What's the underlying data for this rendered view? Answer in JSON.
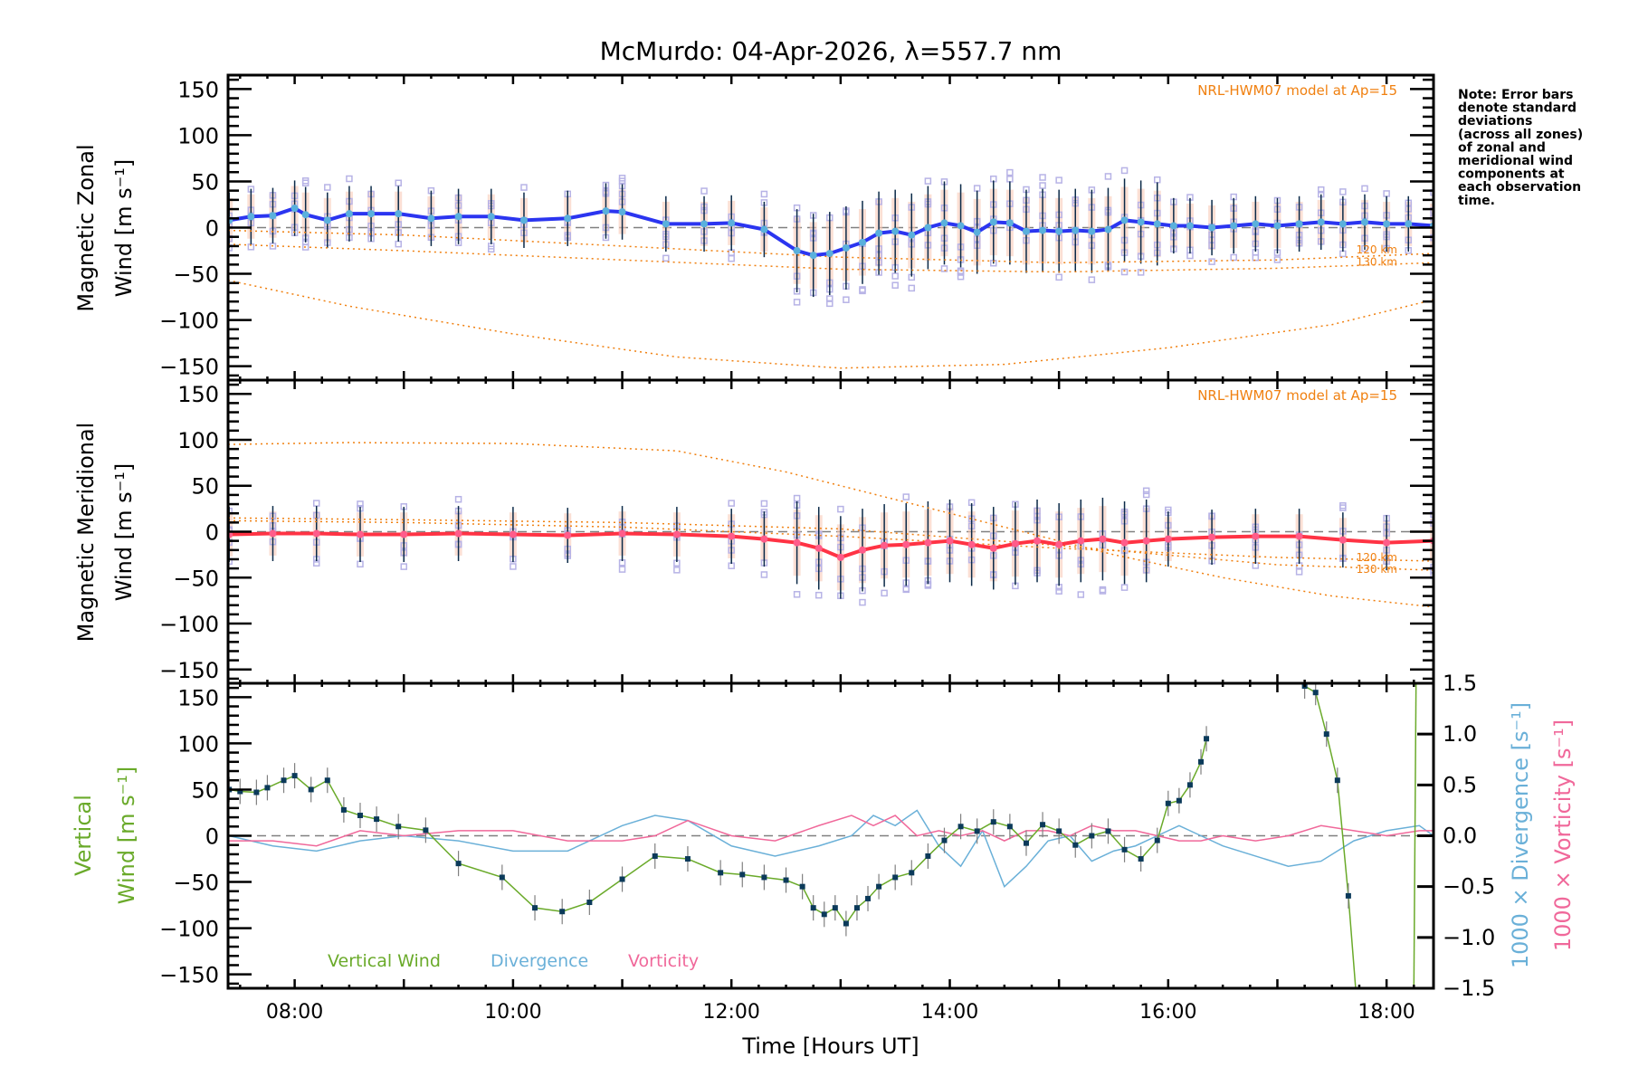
{
  "colors": {
    "frame": "#000000",
    "zonal_line": "#2b35f0",
    "zonal_points": "#5ab0dc",
    "meridional_line": "#ff3344",
    "meridional_points": "#ff5c8a",
    "model": "#f08010",
    "scatter": "#b7b3e6",
    "errorbar_dark": "#0b2a48",
    "zero_line": "#808080",
    "vertical_wind": "#6aaa2a",
    "vertical_points": "#0b3a5a",
    "vertical_err": "#808080",
    "divergence": "#6ab0d8",
    "vorticity": "#f0689a"
  },
  "chart_data": [
    {
      "id": "zonal",
      "type": "line",
      "title": "McMurdo: 04-Apr-2026, λ=557.7 nm",
      "xlabel": "Time [Hours UT]",
      "ylabel_line1": "Magnetic Zonal",
      "ylabel_line2": "Wind [m s⁻¹]",
      "ylim": [
        -165,
        165
      ],
      "xlim_hours": [
        7.39,
        18.43
      ],
      "yticks": [
        -150,
        -100,
        -50,
        0,
        50,
        100,
        150
      ],
      "ytick_labels": [
        "−150",
        "−100",
        "−50",
        "0",
        "50",
        "100",
        "150"
      ],
      "model_label": "NRL-HWM07 model at Ap=15",
      "km_labels": [
        "120 km",
        "130 km"
      ],
      "series": [
        {
          "name": "Zonal wind (mean)",
          "x": [
            7.4,
            7.6,
            7.8,
            8.0,
            8.1,
            8.3,
            8.5,
            8.7,
            8.95,
            9.25,
            9.5,
            9.8,
            10.1,
            10.5,
            10.85,
            11.0,
            11.4,
            11.75,
            12.0,
            12.3,
            12.6,
            12.75,
            12.9,
            13.05,
            13.2,
            13.35,
            13.5,
            13.65,
            13.8,
            13.95,
            14.1,
            14.25,
            14.4,
            14.55,
            14.7,
            14.85,
            15.0,
            15.15,
            15.3,
            15.45,
            15.6,
            15.75,
            15.9,
            16.05,
            16.2,
            16.4,
            16.6,
            16.8,
            17.0,
            17.2,
            17.4,
            17.6,
            17.8,
            18.0,
            18.2,
            18.43
          ],
          "values": [
            8,
            12,
            13,
            21,
            14,
            8,
            15,
            15,
            15,
            10,
            12,
            12,
            8,
            10,
            18,
            17,
            4,
            4,
            5,
            -2,
            -25,
            -30,
            -28,
            -22,
            -16,
            -6,
            -4,
            -8,
            0,
            5,
            2,
            -5,
            6,
            5,
            -4,
            -3,
            -4,
            -3,
            -4,
            -2,
            8,
            6,
            4,
            2,
            2,
            0,
            2,
            4,
            2,
            4,
            6,
            4,
            6,
            4,
            4,
            2
          ]
        },
        {
          "name": "HWM07 model 120 km",
          "x": [
            7.39,
            9,
            11,
            13,
            15,
            17,
            18.43
          ],
          "values": [
            -3,
            -8,
            -20,
            -32,
            -38,
            -35,
            -28
          ]
        },
        {
          "name": "HWM07 model 130 km",
          "x": [
            7.39,
            9,
            11,
            13,
            15,
            17,
            18.43
          ],
          "values": [
            -18,
            -25,
            -35,
            -45,
            -48,
            -44,
            -38
          ]
        },
        {
          "name": "HWM07 model (lower)",
          "x": [
            7.39,
            8.5,
            10,
            11.5,
            13,
            14.5,
            16,
            17.5,
            18.43
          ],
          "values": [
            -57,
            -85,
            -115,
            -140,
            -152,
            -148,
            -130,
            -105,
            -78
          ]
        }
      ]
    },
    {
      "id": "meridional",
      "type": "line",
      "ylabel_line1": "Magnetic Meridional",
      "ylabel_line2": "Wind [m s⁻¹]",
      "ylim": [
        -165,
        165
      ],
      "xlim_hours": [
        7.39,
        18.43
      ],
      "yticks": [
        -150,
        -100,
        -50,
        0,
        50,
        100,
        150
      ],
      "ytick_labels": [
        "−150",
        "−100",
        "−50",
        "0",
        "50",
        "100",
        "150"
      ],
      "model_label": "NRL-HWM07 model at Ap=15",
      "km_labels": [
        "120 km",
        "130 km"
      ],
      "series": [
        {
          "name": "Meridional wind (mean)",
          "x": [
            7.4,
            7.8,
            8.2,
            8.6,
            9.0,
            9.5,
            10.0,
            10.5,
            11.0,
            11.5,
            12.0,
            12.3,
            12.6,
            12.8,
            13.0,
            13.2,
            13.4,
            13.6,
            13.8,
            14.0,
            14.2,
            14.4,
            14.6,
            14.8,
            15.0,
            15.2,
            15.4,
            15.6,
            15.8,
            16.0,
            16.4,
            16.8,
            17.2,
            17.6,
            18.0,
            18.43
          ],
          "values": [
            -3,
            -2,
            -2,
            -3,
            -3,
            -2,
            -3,
            -4,
            -2,
            -3,
            -5,
            -8,
            -12,
            -18,
            -28,
            -20,
            -15,
            -14,
            -12,
            -10,
            -14,
            -18,
            -13,
            -10,
            -14,
            -10,
            -8,
            -12,
            -10,
            -8,
            -6,
            -5,
            -5,
            -9,
            -12,
            -10
          ]
        },
        {
          "name": "HWM07 model 120 km",
          "x": [
            7.39,
            9,
            11,
            13,
            15,
            17,
            18.43
          ],
          "values": [
            12,
            10,
            5,
            -5,
            -18,
            -28,
            -32
          ]
        },
        {
          "name": "HWM07 model 130 km",
          "x": [
            7.39,
            9,
            11,
            13,
            15,
            17,
            18.43
          ],
          "values": [
            15,
            13,
            10,
            3,
            -15,
            -36,
            -42
          ]
        },
        {
          "name": "HWM07 model (upper)",
          "x": [
            7.39,
            8.5,
            10,
            11.5,
            12.5,
            13.5,
            14.5,
            15.5,
            16.5,
            17.5,
            18.43
          ],
          "values": [
            95,
            97,
            96,
            88,
            65,
            35,
            5,
            -25,
            -50,
            -70,
            -82
          ]
        }
      ]
    },
    {
      "id": "vertical",
      "type": "line",
      "xlabel": "Time [Hours UT]",
      "ylabel_line1": "Vertical",
      "ylabel_line2": "Wind [m s⁻¹]",
      "y2label_div": "1000 × Divergence [s⁻¹]",
      "y2label_vor": "1000 × Vorticity [s⁻¹]",
      "ylim": [
        -165,
        165
      ],
      "y2lim": [
        -1.5,
        1.5
      ],
      "xlim_hours": [
        7.39,
        18.43
      ],
      "yticks": [
        -150,
        -100,
        -50,
        0,
        50,
        100,
        150
      ],
      "ytick_labels": [
        "−150",
        "−100",
        "−50",
        "0",
        "50",
        "100",
        "150"
      ],
      "y2ticks": [
        -1.5,
        -1.0,
        -0.5,
        0.0,
        0.5,
        1.0,
        1.5
      ],
      "y2tick_labels": [
        "−1.5",
        "−1.0",
        "−0.5",
        "0.0",
        "0.5",
        "1.0",
        "1.5"
      ],
      "xticks": [
        8,
        10,
        12,
        14,
        16,
        18
      ],
      "xtick_labels": [
        "08:00",
        "10:00",
        "12:00",
        "14:00",
        "16:00",
        "18:00"
      ],
      "legend": [
        "Vertical Wind",
        "Divergence",
        "Vorticity"
      ],
      "series": [
        {
          "name": "Vertical Wind",
          "x": [
            7.4,
            7.5,
            7.65,
            7.75,
            7.9,
            8.0,
            8.15,
            8.3,
            8.45,
            8.6,
            8.75,
            8.95,
            9.2,
            9.5,
            9.9,
            10.2,
            10.45,
            10.7,
            11.0,
            11.3,
            11.6,
            11.9,
            12.1,
            12.3,
            12.5,
            12.65,
            12.75,
            12.85,
            12.95,
            13.05,
            13.15,
            13.25,
            13.35,
            13.5,
            13.65,
            13.8,
            13.95,
            14.1,
            14.25,
            14.4,
            14.55,
            14.7,
            14.85,
            15.0,
            15.15,
            15.3,
            15.45,
            15.6,
            15.75,
            15.9,
            16.0,
            16.1,
            16.2,
            16.3,
            16.35,
            17.25,
            17.35,
            17.45,
            17.55,
            17.65
          ],
          "values": [
            50,
            48,
            47,
            52,
            60,
            65,
            50,
            60,
            28,
            22,
            18,
            10,
            6,
            -30,
            -45,
            -78,
            -82,
            -72,
            -47,
            -22,
            -25,
            -40,
            -42,
            -45,
            -48,
            -55,
            -78,
            -85,
            -78,
            -95,
            -78,
            -68,
            -55,
            -45,
            -40,
            -22,
            -5,
            10,
            5,
            15,
            10,
            -8,
            12,
            5,
            -10,
            0,
            5,
            -15,
            -25,
            -5,
            35,
            38,
            55,
            80,
            105,
            162,
            155,
            110,
            60,
            -65
          ]
        },
        {
          "name": "Vertical Wind (steep trace)",
          "x": [
            18.25,
            18.27
          ],
          "values": [
            -165,
            165
          ]
        },
        {
          "name": "Divergence",
          "x": [
            7.4,
            7.8,
            8.2,
            8.6,
            9.0,
            9.5,
            10.0,
            10.5,
            11.0,
            11.3,
            11.6,
            12.0,
            12.4,
            12.8,
            13.1,
            13.3,
            13.5,
            13.7,
            13.9,
            14.1,
            14.3,
            14.5,
            14.7,
            14.9,
            15.1,
            15.3,
            15.5,
            15.7,
            15.9,
            16.1,
            16.3,
            16.5,
            16.8,
            17.1,
            17.4,
            17.7,
            18.0,
            18.3,
            18.43
          ],
          "values": [
            0.0,
            -0.1,
            -0.15,
            -0.05,
            0.0,
            -0.05,
            -0.15,
            -0.15,
            0.1,
            0.2,
            0.15,
            -0.1,
            -0.2,
            -0.1,
            0.0,
            0.2,
            0.1,
            0.25,
            -0.1,
            -0.3,
            0.05,
            -0.5,
            -0.3,
            -0.05,
            0.0,
            -0.25,
            -0.15,
            -0.1,
            0.0,
            0.1,
            0.0,
            -0.1,
            -0.2,
            -0.3,
            -0.25,
            -0.05,
            0.05,
            0.1,
            0.0
          ]
        },
        {
          "name": "Vorticity",
          "x": [
            7.4,
            7.8,
            8.2,
            8.6,
            9.0,
            9.5,
            10.0,
            10.5,
            11.0,
            11.3,
            11.6,
            12.0,
            12.4,
            12.8,
            13.1,
            13.3,
            13.5,
            13.7,
            13.9,
            14.1,
            14.3,
            14.5,
            14.7,
            14.9,
            15.1,
            15.3,
            15.5,
            15.7,
            15.9,
            16.1,
            16.3,
            16.5,
            16.8,
            17.1,
            17.4,
            17.7,
            18.0,
            18.3,
            18.43
          ],
          "values": [
            -0.05,
            -0.05,
            -0.1,
            0.05,
            0.0,
            0.05,
            0.05,
            -0.05,
            -0.05,
            0.0,
            0.15,
            0.0,
            -0.05,
            0.1,
            0.2,
            0.1,
            0.2,
            0.0,
            0.05,
            0.0,
            0.05,
            -0.05,
            0.05,
            0.05,
            0.0,
            0.1,
            0.05,
            0.05,
            0.0,
            -0.05,
            -0.05,
            0.0,
            -0.05,
            0.0,
            0.1,
            0.05,
            0.0,
            0.05,
            0.05
          ]
        }
      ]
    }
  ],
  "note": {
    "lines": [
      "Note: Error bars",
      "denote standard",
      "deviations",
      "(across all zones)",
      "of zonal and",
      "meridional wind",
      "components at",
      "each observation",
      "time."
    ]
  }
}
